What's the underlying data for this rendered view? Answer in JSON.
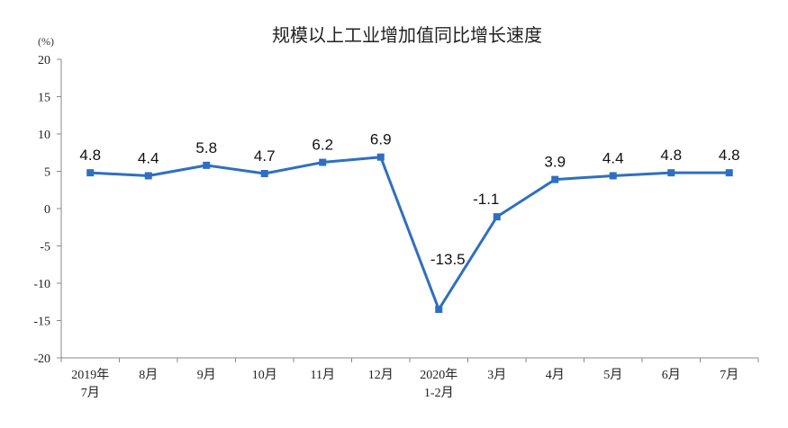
{
  "chart_data": {
    "type": "line",
    "title": "规模以上工业增加值同比增长速度",
    "unit_label": "(%)",
    "ylim": [
      -20,
      20
    ],
    "yticks": [
      "20",
      "15",
      "10",
      "5",
      "0",
      "-5",
      "-10",
      "-15",
      "-20"
    ],
    "ytick_values": [
      20,
      15,
      10,
      5,
      0,
      -5,
      -10,
      -15,
      -20
    ],
    "categories": [
      [
        "2019年",
        "7月"
      ],
      [
        "8月"
      ],
      [
        "9月"
      ],
      [
        "10月"
      ],
      [
        "11月"
      ],
      [
        "12月"
      ],
      [
        "2020年",
        "1-2月"
      ],
      [
        "3月"
      ],
      [
        "4月"
      ],
      [
        "5月"
      ],
      [
        "6月"
      ],
      [
        "7月"
      ]
    ],
    "values": [
      4.8,
      4.4,
      5.8,
      4.7,
      6.2,
      6.9,
      -13.5,
      -1.1,
      3.9,
      4.4,
      4.8,
      4.8
    ],
    "data_labels": [
      "4.8",
      "4.4",
      "5.8",
      "4.7",
      "6.2",
      "6.9",
      "-13.5",
      "-1.1",
      "3.9",
      "4.4",
      "4.8",
      "4.8"
    ],
    "line_color": "#2f6fc0",
    "grid": false,
    "legend": "none"
  }
}
